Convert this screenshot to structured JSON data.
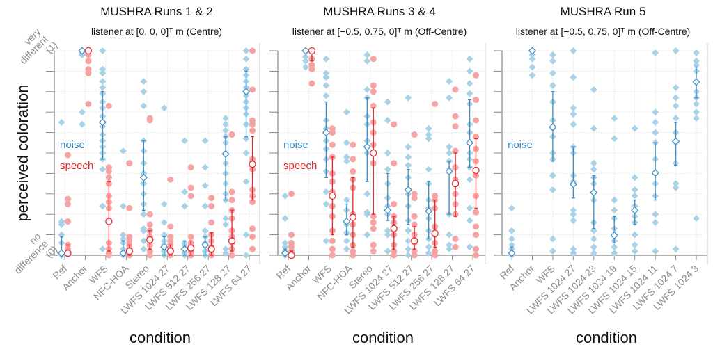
{
  "chart_data": [
    {
      "type": "scatter",
      "title": "MUSHRA Runs 1 & 2",
      "subtitle": "listener at [0, 0, 0]ᵀ m (Centre)",
      "xlabel": "condition",
      "ylabel": "perceived coloration",
      "ylim": [
        0,
        1
      ],
      "ytick_labels": [
        "no difference (0)",
        "very different (1)"
      ],
      "grid": true,
      "categories": [
        "Ref",
        "Anchor",
        "WFS",
        "NFC-HOA",
        "Stereo",
        "LWFS 1024 27",
        "LWFS 512 27",
        "LWFS 256 27",
        "LWFS 128 27",
        "LWFS 64 27"
      ],
      "series": [
        {
          "name": "noise",
          "color": "#3a8cc4",
          "point_color": "#a9d2e7",
          "mean": [
            0.01,
            1.0,
            0.65,
            0.01,
            0.38,
            0.04,
            0.03,
            0.05,
            0.495,
            0.8
          ],
          "ci": [
            [
              0,
              0.09
            ],
            [
              0.99,
              1.0
            ],
            [
              0.47,
              0.8
            ],
            [
              0,
              0.07
            ],
            [
              0.22,
              0.56
            ],
            [
              0,
              0.09
            ],
            [
              0,
              0.07
            ],
            [
              0,
              0.09
            ],
            [
              0.27,
              0.58
            ],
            [
              0.58,
              0.9
            ]
          ],
          "points": [
            [
              0.65,
              0.165,
              0.15,
              0.1,
              0.06,
              0.01,
              0
            ],
            [
              1.0,
              0.99,
              0.98,
              0.7,
              0.64
            ],
            [
              1.0,
              0.91,
              0.89,
              0.85,
              0.82,
              0.79,
              0.75,
              0.72,
              0.68,
              0.63,
              0.59,
              0.56,
              0.53,
              0.5,
              0.47,
              0.42,
              0.24,
              0.03
            ],
            [
              0.51,
              0.24,
              0.1,
              0.08,
              0.06,
              0.03,
              0.01,
              0
            ],
            [
              0.85,
              0.8,
              0.73,
              0.56,
              0.51,
              0.45,
              0.4,
              0.35,
              0.3,
              0.25,
              0.2,
              0.13,
              0.12,
              0.07,
              0.03
            ],
            [
              0.72,
              0.25,
              0.16,
              0.1,
              0.07,
              0.05,
              0.02,
              0
            ],
            [
              0.56,
              0.31,
              0.24,
              0.06,
              0.05,
              0.03,
              0.01,
              0
            ],
            [
              0.56,
              0.43,
              0.34,
              0.24,
              0.12,
              0.09,
              0.06,
              0.02,
              0
            ],
            [
              0.67,
              0.64,
              0.61,
              0.58,
              0.55,
              0.5,
              0.45,
              0.4,
              0.35,
              0.3,
              0.27,
              0.18,
              0.15,
              0.03,
              0.01
            ],
            [
              1.0,
              0.96,
              0.91,
              0.88,
              0.85,
              0.82,
              0.78,
              0.75,
              0.72,
              0.69,
              0.64,
              0.57,
              0.5,
              0.36,
              0.1,
              0
            ]
          ]
        },
        {
          "name": "speech",
          "color": "#e5262b",
          "point_color": "#f5a3a3",
          "mean": [
            0.01,
            1.0,
            0.165,
            0.02,
            0.075,
            0.02,
            0.035,
            0.03,
            0.07,
            0.445
          ],
          "ci": [
            [
              0,
              0.05
            ],
            [
              0.99,
              1.0
            ],
            [
              0.02,
              0.36
            ],
            [
              0,
              0.05
            ],
            [
              0.03,
              0.12
            ],
            [
              0,
              0.05
            ],
            [
              0,
              0.07
            ],
            [
              0,
              0.11
            ],
            [
              0.02,
              0.22
            ],
            [
              0.27,
              0.58
            ]
          ],
          "points": [
            [
              0.49,
              0.275,
              0.25,
              0.165,
              0.05,
              0.03,
              0.01
            ],
            [
              1.0,
              0.98,
              0.95,
              0.91,
              0.89,
              0.74
            ],
            [
              0.73,
              0.43,
              0.41,
              0.38,
              0.35,
              0.29,
              0.26,
              0.23,
              0.17,
              0.06,
              0.03,
              0.01,
              0
            ],
            [
              0.45,
              0.23,
              0.09,
              0.07,
              0.05,
              0.03,
              0.01,
              0
            ],
            [
              0.67,
              0.66,
              0.2,
              0.15,
              0.12,
              0.09,
              0.05,
              0.02,
              0
            ],
            [
              0.37,
              0.14,
              0.09,
              0.07,
              0.05,
              0.03,
              0.01,
              0
            ],
            [
              0.43,
              0.33,
              0.29,
              0.09,
              0.06,
              0.04,
              0.02,
              0
            ],
            [
              0.28,
              0.24,
              0.16,
              0.1,
              0.07,
              0.04,
              0.02,
              0
            ],
            [
              0.59,
              0.31,
              0.27,
              0.22,
              0.18,
              0.12,
              0.09,
              0.06,
              0.03,
              0
            ],
            [
              1.0,
              0.81,
              0.66,
              0.64,
              0.61,
              0.47,
              0.45,
              0.42,
              0.32,
              0.29,
              0.26,
              0.13,
              0.09,
              0.03
            ]
          ]
        }
      ]
    },
    {
      "type": "scatter",
      "title": "MUSHRA Runs 3 & 4",
      "subtitle": "listener at [−0.5, 0.75, 0]ᵀ m (Off-Centre)",
      "xlabel": "condition",
      "ylim": [
        0,
        1
      ],
      "grid": true,
      "categories": [
        "Ref",
        "Anchor",
        "WFS",
        "NFC-HOA",
        "Stereo",
        "LWFS 1024 27",
        "LWFS 512 27",
        "LWFS 256 27",
        "LWFS 128 27",
        "LWFS 64 27"
      ],
      "series": [
        {
          "name": "noise",
          "color": "#3a8cc4",
          "point_color": "#a9d2e7",
          "mean": [
            0.01,
            1.0,
            0.6,
            0.165,
            0.53,
            0.22,
            0.32,
            0.215,
            0.41,
            0.55
          ],
          "ci": [
            [
              0,
              0.03
            ],
            [
              0.99,
              1.0
            ],
            [
              0.38,
              0.75
            ],
            [
              0.1,
              0.25
            ],
            [
              0.36,
              0.77
            ],
            [
              0.17,
              0.4
            ],
            [
              0.15,
              0.42
            ],
            [
              0.08,
              0.36
            ],
            [
              0.2,
              0.46
            ],
            [
              0.43,
              0.76
            ]
          ],
          "points": [
            [
              0.29,
              0.18,
              0.06,
              0.04,
              0.02,
              0
            ],
            [
              1.0,
              0.97,
              0.95,
              0.92
            ],
            [
              0.96,
              0.89,
              0.87,
              0.83,
              0.78,
              0.66,
              0.62,
              0.56,
              0.52,
              0.47,
              0.41,
              0.31,
              0.25,
              0.07
            ],
            [
              0.7,
              0.55,
              0.48,
              0.46,
              0.27,
              0.22,
              0.15,
              0.11,
              0.07,
              0.03
            ],
            [
              0.98,
              0.95,
              0.81,
              0.77,
              0.68,
              0.64,
              0.56,
              0.5,
              0.3,
              0.21,
              0.2,
              0.1
            ],
            [
              0.75,
              0.66,
              0.5,
              0.42,
              0.35,
              0.28,
              0.24,
              0.2,
              0.12,
              0.1,
              0.02
            ],
            [
              0.77,
              0.53,
              0.48,
              0.44,
              0.38,
              0.3,
              0.24,
              0.17,
              0.12,
              0.07,
              0.03,
              0
            ],
            [
              0.62,
              0.59,
              0.57,
              0.42,
              0.35,
              0.27,
              0.23,
              0.18,
              0.12,
              0.08,
              0.04,
              0.01
            ],
            [
              0.85,
              0.77,
              0.53,
              0.5,
              0.46,
              0.42,
              0.2,
              0.1,
              0.05,
              0.03
            ],
            [
              0.96,
              0.9,
              0.84,
              0.79,
              0.74,
              0.64,
              0.6,
              0.5,
              0.47,
              0.43,
              0.37,
              0.23,
              0.17,
              0.04
            ]
          ]
        },
        {
          "name": "speech",
          "color": "#e5262b",
          "point_color": "#f5a3a3",
          "mean": [
            0.0,
            1.0,
            0.29,
            0.185,
            0.5,
            0.13,
            0.07,
            0.107,
            0.35,
            0.415
          ],
          "ci": [
            [
              0,
              0.02
            ],
            [
              0.95,
              1.0
            ],
            [
              0.1,
              0.48
            ],
            [
              0.04,
              0.38
            ],
            [
              0.2,
              0.72
            ],
            [
              0.03,
              0.19
            ],
            [
              0.03,
              0.14
            ],
            [
              0.04,
              0.27
            ],
            [
              0.19,
              0.5
            ],
            [
              0.23,
              0.57
            ]
          ],
          "points": [
            [
              0.3,
              0.1,
              0.06,
              0.04,
              0.02,
              0
            ],
            [
              1.0,
              0.96,
              0.93,
              0.91,
              0.84
            ],
            [
              0.62,
              0.6,
              0.54,
              0.48,
              0.4,
              0.36,
              0.31,
              0.24,
              0.19,
              0.12,
              0.07,
              0.03,
              0
            ],
            [
              0.54,
              0.47,
              0.41,
              0.37,
              0.33,
              0.2,
              0.15,
              0.1,
              0.05,
              0.02,
              0
            ],
            [
              0.96,
              0.83,
              0.8,
              0.73,
              0.65,
              0.6,
              0.54,
              0.45,
              0.19,
              0.16,
              0.13,
              0.05,
              0.02
            ],
            [
              0.64,
              0.45,
              0.25,
              0.19,
              0.16,
              0.1,
              0.05,
              0.02,
              0
            ],
            [
              0.59,
              0.3,
              0.28,
              0.19,
              0.15,
              0.1,
              0.06,
              0.02,
              0
            ],
            [
              0.74,
              0.29,
              0.27,
              0.23,
              0.14,
              0.1,
              0.06,
              0.02,
              0
            ],
            [
              0.81,
              0.68,
              0.63,
              0.51,
              0.43,
              0.37,
              0.3,
              0.25,
              0.2,
              0.08,
              0.04
            ],
            [
              0.88,
              0.76,
              0.66,
              0.58,
              0.52,
              0.46,
              0.39,
              0.29,
              0.21,
              0.14,
              0.1,
              0.03,
              0
            ]
          ]
        }
      ]
    },
    {
      "type": "scatter",
      "title": "MUSHRA Run 5",
      "subtitle": "listener at [−0.5, 0.75, 0]ᵀ m (Off-Centre)",
      "xlabel": "condition",
      "ylim": [
        0,
        1
      ],
      "grid": true,
      "categories": [
        "Ref",
        "Anchor",
        "WFS",
        "LWFS 1024 27",
        "LWFS 1024 23",
        "LWFS 1024 19",
        "LWFS 1024 15",
        "LWFS 1024 11",
        "LWFS 1024 7",
        "LWFS 1024 3"
      ],
      "series": [
        {
          "name": "noise",
          "color": "#3a8cc4",
          "point_color": "#a9d2e7",
          "mean": [
            0.01,
            1.0,
            0.627,
            0.347,
            0.307,
            0.097,
            0.22,
            0.403,
            0.557,
            0.847
          ],
          "ci": [
            [
              0,
              0.04
            ],
            [
              0.99,
              1.0
            ],
            [
              0.46,
              0.8
            ],
            [
              0.28,
              0.53
            ],
            [
              0.13,
              0.39
            ],
            [
              0.06,
              0.19
            ],
            [
              0.15,
              0.27
            ],
            [
              0.27,
              0.55
            ],
            [
              0.44,
              0.65
            ],
            [
              0.77,
              0.92
            ]
          ],
          "points": [
            [
              0.23,
              0.12,
              0.08,
              0.05,
              0.03,
              0.01,
              0
            ],
            [
              1.0,
              0.98,
              0.96,
              0.92,
              0.88
            ],
            [
              0.98,
              0.95,
              0.89,
              0.83,
              0.75,
              0.66,
              0.62,
              0.58,
              0.5,
              0.47,
              0.39,
              0.32,
              0.08,
              0.02
            ],
            [
              1.0,
              0.87,
              0.72,
              0.69,
              0.64,
              0.53,
              0.5,
              0.39,
              0.36,
              0.22,
              0.2,
              0.17,
              0.03,
              0.01
            ],
            [
              0.81,
              0.62,
              0.45,
              0.42,
              0.38,
              0.35,
              0.31,
              0.27,
              0.16,
              0.12,
              0.08,
              0.04,
              0.01
            ],
            [
              0.67,
              0.57,
              0.27,
              0.22,
              0.18,
              0.13,
              0.1,
              0.07,
              0.04,
              0.01
            ],
            [
              0.62,
              0.38,
              0.32,
              0.29,
              0.24,
              0.19,
              0.16,
              0.1,
              0.05,
              0.02
            ],
            [
              0.99,
              0.7,
              0.65,
              0.6,
              0.55,
              0.47,
              0.4,
              0.35,
              0.29,
              0.2,
              0.16,
              0.02
            ],
            [
              1.0,
              0.82,
              0.77,
              0.73,
              0.67,
              0.6,
              0.55,
              0.45,
              0.35,
              0.33,
              0.03
            ],
            [
              0.99,
              0.95,
              0.93,
              0.9,
              0.85,
              0.8,
              0.77,
              0.74,
              0.7,
              0.67,
              0.18
            ]
          ]
        }
      ]
    }
  ]
}
